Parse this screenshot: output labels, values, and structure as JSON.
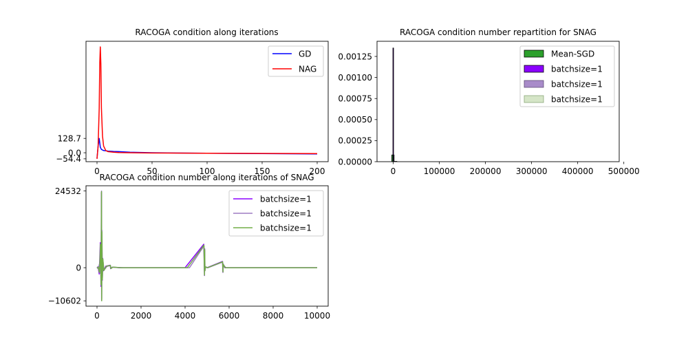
{
  "chart_data": [
    {
      "type": "line",
      "title": "RACOGA condition along iterations",
      "xlabel": "",
      "ylabel": "",
      "xlim": [
        -10,
        210
      ],
      "ylim": [
        -80,
        1000
      ],
      "xticks": [
        0,
        50,
        100,
        150,
        200
      ],
      "yticks": [
        -54.4,
        0.0,
        128.7
      ],
      "ytick_labels": [
        "−54.4",
        "0.0",
        "128.7"
      ],
      "grid": false,
      "legend_position": "upper right",
      "series": [
        {
          "name": "GD",
          "color": "#0000ff",
          "x": [
            0,
            1,
            2,
            3,
            4,
            5,
            6,
            8,
            10,
            15,
            20,
            30,
            50,
            100,
            150,
            200
          ],
          "y": [
            -50,
            60,
            128,
            50,
            30,
            25,
            20,
            18,
            15,
            12,
            10,
            5,
            0,
            -5,
            -8,
            -10
          ]
        },
        {
          "name": "NAG",
          "color": "#ff0000",
          "x": [
            0,
            1,
            2,
            2.5,
            3,
            3.5,
            4,
            5,
            6,
            8,
            10,
            15,
            20,
            30,
            50,
            100,
            150,
            200
          ],
          "y": [
            -54.4,
            60,
            400,
            800,
            950,
            800,
            400,
            150,
            60,
            20,
            10,
            5,
            2,
            0,
            -2,
            -4,
            -6,
            -8
          ]
        }
      ]
    },
    {
      "type": "bar",
      "title": "RACOGA condition number repartition for SNAG",
      "xlabel": "",
      "ylabel": "",
      "xlim": [
        -35000,
        490000
      ],
      "ylim": [
        0,
        0.00143
      ],
      "xticks": [
        0,
        100000,
        200000,
        300000,
        400000,
        500000
      ],
      "xtick_labels": [
        "0",
        "100000",
        "200000",
        "300000",
        "400000",
        "500000"
      ],
      "yticks": [
        0.0,
        0.00025,
        0.0005,
        0.00075,
        0.001,
        0.00125
      ],
      "ytick_labels": [
        "0.00000",
        "0.00025",
        "0.00050",
        "0.00075",
        "0.00100",
        "0.00125"
      ],
      "grid": false,
      "legend_position": "upper right",
      "legend": [
        {
          "label": "Mean-SGD",
          "color": "#2ca02c"
        },
        {
          "label": "batchsize=1",
          "color": "#8b00ff"
        },
        {
          "label": "batchsize=1",
          "color": "#9e7bc2"
        },
        {
          "label": "batchsize=1",
          "color": "#c6dcb5"
        }
      ],
      "bars": [
        {
          "x0": -3000,
          "x1": 2000,
          "height": 8e-05,
          "color": "#2ca02c"
        },
        {
          "x0": -600,
          "x1": 600,
          "height": 0.00135,
          "color": "#8b00ff"
        },
        {
          "x0": 2000,
          "x1": 8000,
          "height": 4e-06,
          "color": "#2ca02c"
        }
      ]
    },
    {
      "type": "line",
      "title": "RACOGA condition number along iterations of SNAG",
      "xlabel": "",
      "ylabel": "",
      "xlim": [
        -500,
        10500
      ],
      "ylim": [
        -12300,
        26200
      ],
      "xticks": [
        0,
        2000,
        4000,
        6000,
        8000,
        10000
      ],
      "yticks": [
        -10602,
        0,
        24532
      ],
      "ytick_labels": [
        "−10602",
        "0",
        "24532"
      ],
      "grid": false,
      "legend_position": "upper right",
      "series": [
        {
          "name": "batchsize=1",
          "color": "#8b00ff",
          "x": [
            0,
            50,
            100,
            120,
            150,
            180,
            200,
            210,
            220,
            240,
            260,
            300,
            400,
            600,
            620,
            700,
            1000,
            2000,
            3000,
            4000,
            4850,
            4880,
            4890,
            4900,
            4920,
            5000,
            5700,
            5720,
            5730,
            5800,
            6000,
            8000,
            10000
          ],
          "y": [
            0,
            300,
            -2000,
            1500,
            8000,
            -6000,
            24000,
            -10500,
            12000,
            -4000,
            3000,
            -1000,
            500,
            800,
            -300,
            200,
            0,
            0,
            0,
            0,
            7500,
            -2500,
            6000,
            -1000,
            300,
            0,
            2000,
            -1500,
            1200,
            0,
            0,
            0,
            0
          ]
        },
        {
          "name": "batchsize=1",
          "color": "#9e7bc2",
          "x": [
            0,
            60,
            110,
            130,
            160,
            190,
            205,
            215,
            225,
            245,
            270,
            320,
            450,
            610,
            640,
            720,
            1200,
            2200,
            3200,
            4200,
            4860,
            4885,
            4895,
            4905,
            4930,
            5050,
            5705,
            5725,
            5735,
            5850,
            6200,
            8200,
            10000
          ],
          "y": [
            0,
            -400,
            1200,
            -1800,
            7000,
            -5000,
            24532,
            -10000,
            11000,
            -3500,
            2500,
            -800,
            400,
            700,
            -250,
            150,
            0,
            0,
            0,
            0,
            7000,
            -2300,
            5500,
            -900,
            250,
            0,
            1800,
            -1300,
            1000,
            0,
            0,
            0,
            0
          ]
        },
        {
          "name": "batchsize=1",
          "color": "#70ad47",
          "x": [
            0,
            55,
            105,
            125,
            155,
            185,
            202,
            212,
            222,
            242,
            265,
            310,
            420,
            605,
            630,
            710,
            1100,
            2100,
            3100,
            4100,
            4855,
            4882,
            4892,
            4902,
            4925,
            5020,
            5702,
            5722,
            5732,
            5820,
            6100,
            8100,
            10000
          ],
          "y": [
            0,
            200,
            -1500,
            1000,
            7500,
            -5500,
            24300,
            -10602,
            11500,
            -3800,
            2800,
            -900,
            450,
            750,
            -280,
            180,
            0,
            0,
            0,
            0,
            7200,
            -2400,
            5800,
            -950,
            280,
            0,
            1900,
            -1400,
            1100,
            0,
            0,
            0,
            0
          ]
        }
      ]
    }
  ]
}
